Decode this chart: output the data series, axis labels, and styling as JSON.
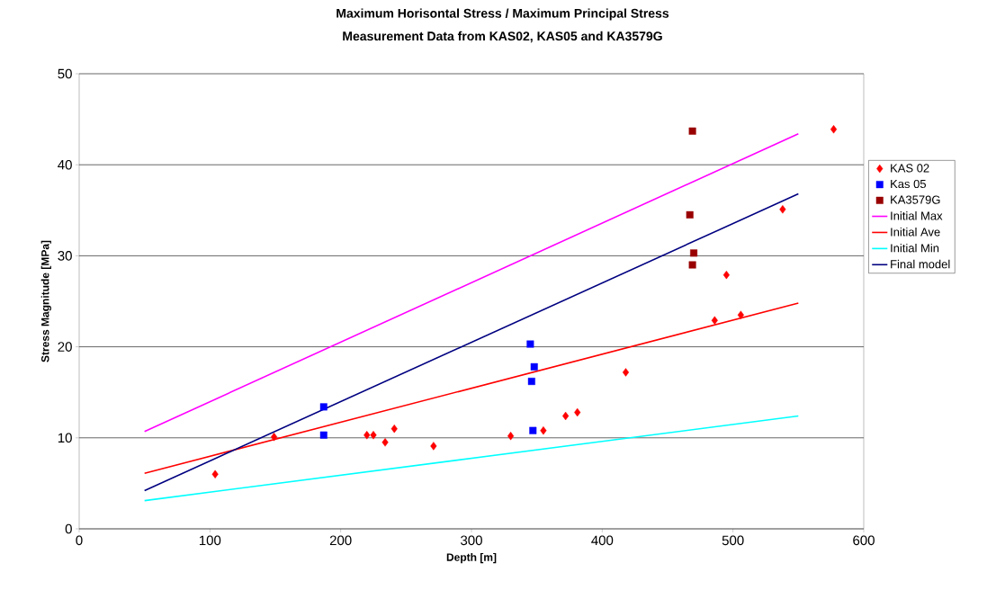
{
  "chart_data": {
    "type": "scatter",
    "title": "Maximum Horisontal Stress / Maximum Principal Stress",
    "subtitle": "Measurement Data from KAS02, KAS05 and KA3579G",
    "xlabel": "Depth   [m]",
    "ylabel": "Stress Magnitude [MPa]",
    "xlim": [
      0,
      600
    ],
    "xticks": [
      0,
      100,
      200,
      300,
      400,
      500,
      600
    ],
    "ylim": [
      0,
      50
    ],
    "yticks": [
      0,
      10,
      20,
      30,
      40,
      50
    ],
    "grid": "y",
    "legend": "right",
    "series": [
      {
        "name": "KAS 02",
        "marker": "diamond",
        "color": "#ff0000",
        "x": [
          104,
          149,
          220,
          225,
          234,
          241,
          271,
          330,
          355,
          372,
          381,
          418,
          486,
          495,
          506,
          538,
          577
        ],
        "values": [
          6.0,
          10.1,
          10.3,
          10.3,
          9.5,
          11.0,
          9.1,
          10.2,
          10.8,
          12.4,
          12.8,
          17.2,
          22.9,
          27.9,
          23.5,
          35.1,
          43.9
        ]
      },
      {
        "name": "Kas 05",
        "marker": "square",
        "color": "#0000ff",
        "x": [
          187,
          187,
          345,
          348,
          346,
          347
        ],
        "values": [
          13.4,
          10.3,
          20.3,
          17.8,
          16.2,
          10.8
        ]
      },
      {
        "name": "KA3579G",
        "marker": "square",
        "color": "#990000",
        "x": [
          469,
          467,
          470,
          469
        ],
        "values": [
          43.7,
          34.5,
          30.3,
          29.0
        ]
      },
      {
        "name": "Initial Max",
        "type": "line",
        "color": "#ff00ff",
        "x": [
          50,
          550
        ],
        "values": [
          10.7,
          43.4
        ]
      },
      {
        "name": "Initial Ave",
        "type": "line",
        "color": "#ff0000",
        "x": [
          50,
          550
        ],
        "values": [
          6.1,
          24.8
        ]
      },
      {
        "name": "Initial Min",
        "type": "line",
        "color": "#00ffff",
        "x": [
          50,
          550
        ],
        "values": [
          3.1,
          12.4
        ]
      },
      {
        "name": "Final model",
        "type": "line",
        "color": "#000080",
        "x": [
          50,
          550
        ],
        "values": [
          4.2,
          36.8
        ]
      }
    ]
  }
}
